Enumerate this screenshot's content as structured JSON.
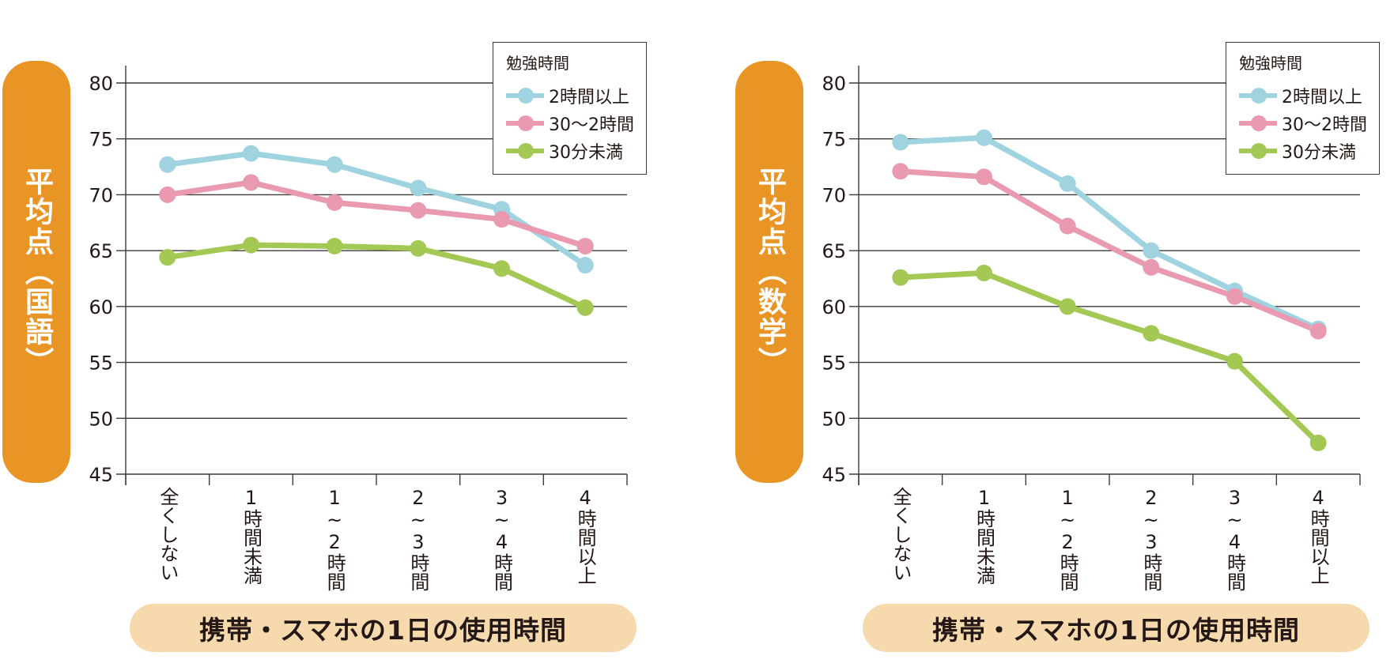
{
  "chart_data": [
    {
      "type": "line",
      "title": "",
      "ylabel": "平均点（国語）",
      "xlabel": "携帯・スマホの1日の使用時間",
      "ylim": [
        45,
        80
      ],
      "yticks": [
        80,
        75,
        70,
        65,
        60,
        55,
        50,
        45
      ],
      "grid": true,
      "legend_title": "勉強時間",
      "legend_position": "top-right",
      "categories": [
        "全くしない",
        "1時間未満",
        "1~2時間",
        "2~3時間",
        "3~4時間",
        "4時間以上"
      ],
      "series": [
        {
          "name": "2時間以上",
          "color": "#9fd3e0",
          "values": [
            72.7,
            73.7,
            72.7,
            70.6,
            68.7,
            63.7
          ]
        },
        {
          "name": "30～2時間",
          "color": "#e99ab0",
          "values": [
            70.0,
            71.1,
            69.3,
            68.6,
            67.8,
            65.4
          ]
        },
        {
          "name": "30分未満",
          "color": "#a3c854",
          "values": [
            64.4,
            65.5,
            65.4,
            65.2,
            63.4,
            59.9
          ]
        }
      ]
    },
    {
      "type": "line",
      "title": "",
      "ylabel": "平均点（数学）",
      "xlabel": "携帯・スマホの1日の使用時間",
      "ylim": [
        45,
        80
      ],
      "yticks": [
        80,
        75,
        70,
        65,
        60,
        55,
        50,
        45
      ],
      "grid": true,
      "legend_title": "勉強時間",
      "legend_position": "top-right",
      "categories": [
        "全くしない",
        "1時間未満",
        "1~2時間",
        "2~3時間",
        "3~4時間",
        "4時間以上"
      ],
      "series": [
        {
          "name": "2時間以上",
          "color": "#9fd3e0",
          "values": [
            74.7,
            75.1,
            71.0,
            65.0,
            61.4,
            58.0
          ]
        },
        {
          "name": "30～2時間",
          "color": "#e99ab0",
          "values": [
            72.1,
            71.6,
            67.2,
            63.5,
            60.9,
            57.8
          ]
        },
        {
          "name": "30分未満",
          "color": "#a3c854",
          "values": [
            62.6,
            63.0,
            60.0,
            57.6,
            55.1,
            47.8
          ]
        }
      ]
    }
  ],
  "colors": {
    "ylabel_pill": "#e89526",
    "xlabel_pill": "#f7d9ae",
    "grid": "#3e3a39"
  }
}
